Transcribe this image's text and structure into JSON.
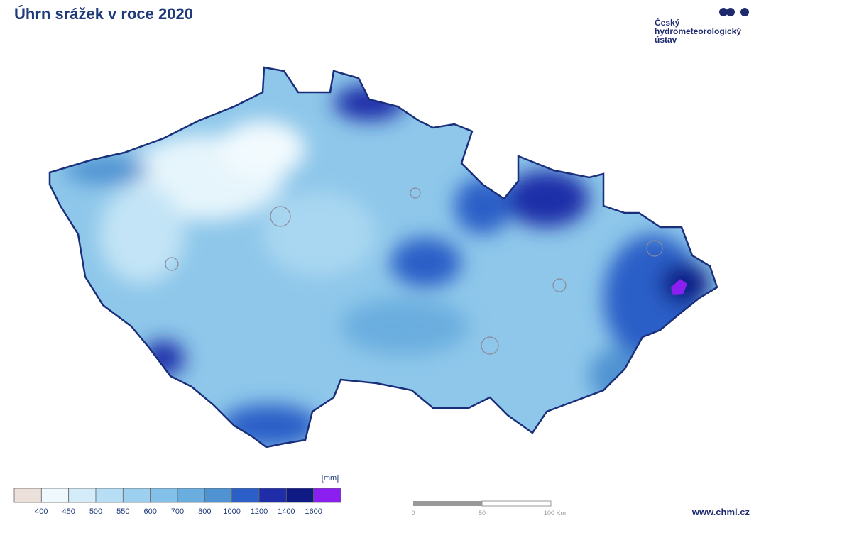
{
  "header": {
    "title": "Úhrn srážek v roce 2020"
  },
  "logo": {
    "lines": [
      "Český",
      "hydrometeorologický",
      "ústav"
    ]
  },
  "legend": {
    "unit": "[mm]",
    "breaks": [
      400,
      450,
      500,
      550,
      600,
      700,
      800,
      1000,
      1200,
      1400,
      1600
    ],
    "colors": [
      "#ebe0da",
      "#eef8fd",
      "#d4ecf9",
      "#b6def4",
      "#9dd0ef",
      "#84c1e8",
      "#6aaedf",
      "#4f93d2",
      "#2c5fc7",
      "#1f2ea8",
      "#0f1a85",
      "#8a1ff0"
    ]
  },
  "scale_bar": {
    "labels": [
      "0",
      "50",
      "100 Km"
    ]
  },
  "footer": {
    "url": "www.chmi.cz"
  }
}
